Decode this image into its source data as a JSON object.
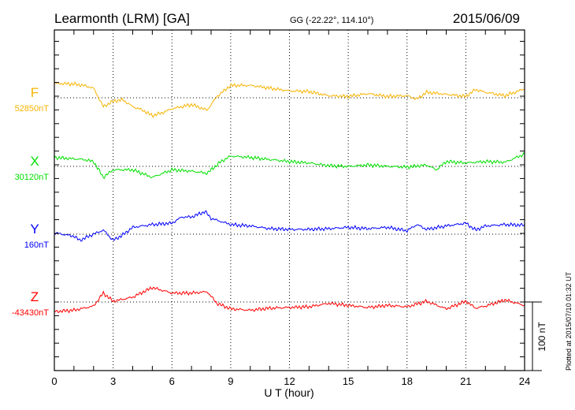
{
  "header": {
    "station": "Learmonth (LRM)  [GA]",
    "coords": "GG (-22.22°, 114.10°)",
    "date": "2015/06/09"
  },
  "footer": {
    "scale_label": "100 nT",
    "plotted_at": "Plotted at 2015/07/10 01:32 UT"
  },
  "chart_data": {
    "type": "line",
    "title": "Learmonth (LRM)  [GA]",
    "xlabel": "U T (hour)",
    "xlim": [
      0,
      24
    ],
    "xticks": [
      "0",
      "3",
      "6",
      "9",
      "12",
      "15",
      "18",
      "21",
      "24"
    ],
    "grid": true,
    "y_units": "nT offset from baseline (100 nT scale bar)",
    "series": [
      {
        "name": "F",
        "baseline_label": "52850nT",
        "color": "#f7b300",
        "x": [
          0,
          1,
          1.5,
          2,
          2.5,
          3,
          3.5,
          4,
          4.5,
          5,
          5.5,
          6,
          7,
          7.8,
          8.3,
          9,
          10,
          11,
          12,
          13,
          14,
          15,
          16,
          17,
          18,
          18.5,
          19,
          20,
          21,
          21.5,
          22,
          23,
          24
        ],
        "values": [
          21,
          20,
          18,
          14,
          -13,
          -5,
          -3,
          -13,
          -18,
          -26,
          -22,
          -16,
          -10,
          -18,
          2,
          18,
          18,
          14,
          10,
          9,
          3,
          2,
          6,
          2,
          3,
          -2,
          8,
          5,
          2,
          12,
          8,
          3,
          13
        ]
      },
      {
        "name": "X",
        "baseline_label": "30120nT",
        "color": "#00e000",
        "x": [
          0,
          1.5,
          2,
          2.5,
          3,
          4,
          5,
          6,
          7,
          7.8,
          8.5,
          9,
          10,
          11,
          12,
          13,
          14,
          15,
          16,
          17,
          18,
          19,
          19.5,
          20,
          21,
          22,
          23,
          24
        ],
        "values": [
          13,
          10,
          7,
          -16,
          -5,
          -5,
          -16,
          -5,
          -7,
          -10,
          7,
          15,
          13,
          10,
          7,
          5,
          1,
          0,
          2,
          0,
          -1,
          2,
          -5,
          7,
          5,
          7,
          6,
          18
        ]
      },
      {
        "name": "Y",
        "baseline_label": "160nT",
        "color": "#0000ff",
        "x": [
          0,
          1,
          1.3,
          2,
          2.5,
          3,
          3.5,
          4,
          5,
          6,
          6.5,
          7,
          7.7,
          8,
          9,
          10,
          11,
          12,
          13,
          14,
          15,
          16,
          17,
          18,
          18.5,
          19,
          20,
          21,
          21.5,
          22,
          23,
          24
        ],
        "values": [
          2,
          -3,
          -9,
          0,
          6,
          -9,
          -1,
          10,
          14,
          16,
          25,
          25,
          33,
          23,
          14,
          12,
          8,
          7,
          7,
          8,
          10,
          8,
          10,
          5,
          14,
          7,
          12,
          16,
          6,
          12,
          14,
          13
        ]
      },
      {
        "name": "Z",
        "baseline_label": "-43430nT",
        "color": "#ff0000",
        "x": [
          0,
          1,
          2,
          2.5,
          3,
          4,
          5,
          6,
          7,
          7.8,
          8.3,
          9,
          10,
          11,
          12,
          13,
          14,
          15,
          16,
          17,
          18,
          19,
          20,
          21,
          21.5,
          22,
          23,
          24
        ],
        "values": [
          -14,
          -12,
          -6,
          13,
          1,
          7,
          21,
          13,
          13,
          15,
          -2,
          -10,
          -12,
          -9,
          -8,
          -7,
          -2,
          -5,
          -8,
          -5,
          -7,
          1,
          -10,
          1,
          -9,
          -6,
          3,
          -5
        ]
      }
    ]
  }
}
